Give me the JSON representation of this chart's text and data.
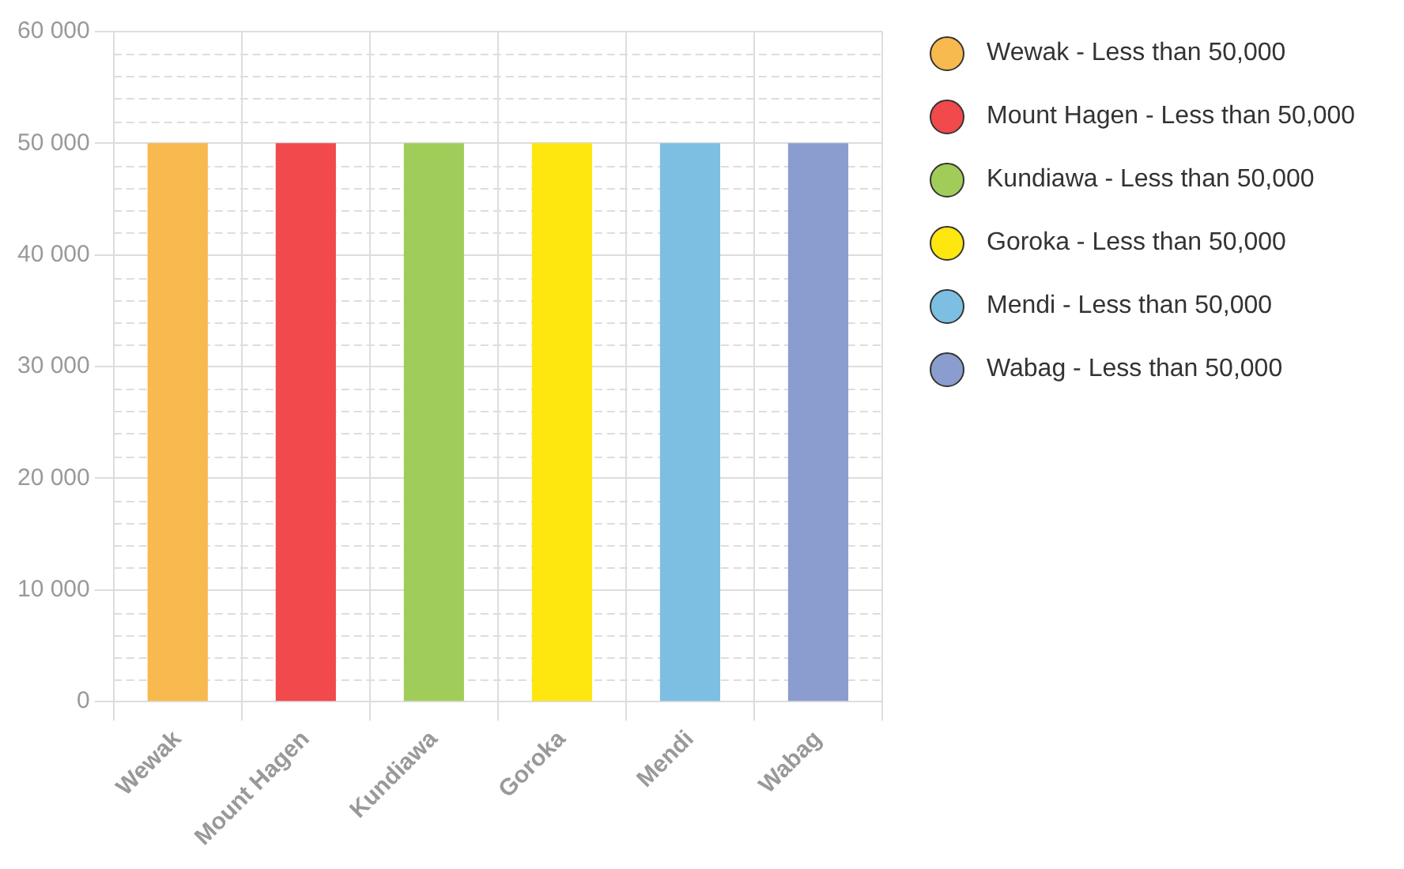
{
  "chart_data": {
    "type": "bar",
    "categories": [
      "Wewak",
      "Mount Hagen",
      "Kundiawa",
      "Goroka",
      "Mendi",
      "Wabag"
    ],
    "series": [
      {
        "name": "Wewak - Less than 50,000",
        "color": "#f8b94f",
        "values": [
          50000,
          null,
          null,
          null,
          null,
          null
        ]
      },
      {
        "name": "Mount Hagen - Less than 50,000",
        "color": "#f1494c",
        "values": [
          null,
          50000,
          null,
          null,
          null,
          null
        ]
      },
      {
        "name": "Kundiawa - Less than 50,000",
        "color": "#a0cd5a",
        "values": [
          null,
          null,
          50000,
          null,
          null,
          null
        ]
      },
      {
        "name": "Goroka - Less than 50,000",
        "color": "#fee60f",
        "values": [
          null,
          null,
          null,
          50000,
          null,
          null
        ]
      },
      {
        "name": "Mendi - Less than 50,000",
        "color": "#7cbfe2",
        "values": [
          null,
          null,
          null,
          null,
          50000,
          null
        ]
      },
      {
        "name": "Wabag - Less than 50,000",
        "color": "#8b9ccf",
        "values": [
          null,
          null,
          null,
          null,
          null,
          50000
        ]
      }
    ],
    "ylim": [
      0,
      60000
    ],
    "yticks": [
      0,
      {
        "value": 2000,
        "label": null
      },
      {
        "value": 4000,
        "label": null
      },
      {
        "value": 6000,
        "label": null
      },
      {
        "value": 8000,
        "label": null
      },
      {
        "value": 10000,
        "label": "10 000"
      },
      {
        "value": 12000,
        "label": null
      },
      {
        "value": 14000,
        "label": null
      },
      {
        "value": 16000,
        "label": null
      },
      {
        "value": 18000,
        "label": null
      },
      {
        "value": 20000,
        "label": "20 000"
      },
      {
        "value": 22000,
        "label": null
      },
      {
        "value": 24000,
        "label": null
      },
      {
        "value": 26000,
        "label": null
      },
      {
        "value": 28000,
        "label": null
      },
      {
        "value": 30000,
        "label": "30 000"
      },
      {
        "value": 32000,
        "label": null
      },
      {
        "value": 34000,
        "label": null
      },
      {
        "value": 36000,
        "label": null
      },
      {
        "value": 38000,
        "label": null
      },
      {
        "value": 40000,
        "label": "40 000"
      },
      {
        "value": 42000,
        "label": null
      },
      {
        "value": 44000,
        "label": null
      },
      {
        "value": 46000,
        "label": null
      },
      {
        "value": 48000,
        "label": null
      },
      {
        "value": 50000,
        "label": "50 000"
      },
      {
        "value": 52000,
        "label": null
      },
      {
        "value": 54000,
        "label": null
      },
      {
        "value": 56000,
        "label": null
      },
      {
        "value": 58000,
        "label": null
      },
      {
        "value": 60000,
        "label": "60 000"
      }
    ],
    "grid": true,
    "legend": "right"
  }
}
